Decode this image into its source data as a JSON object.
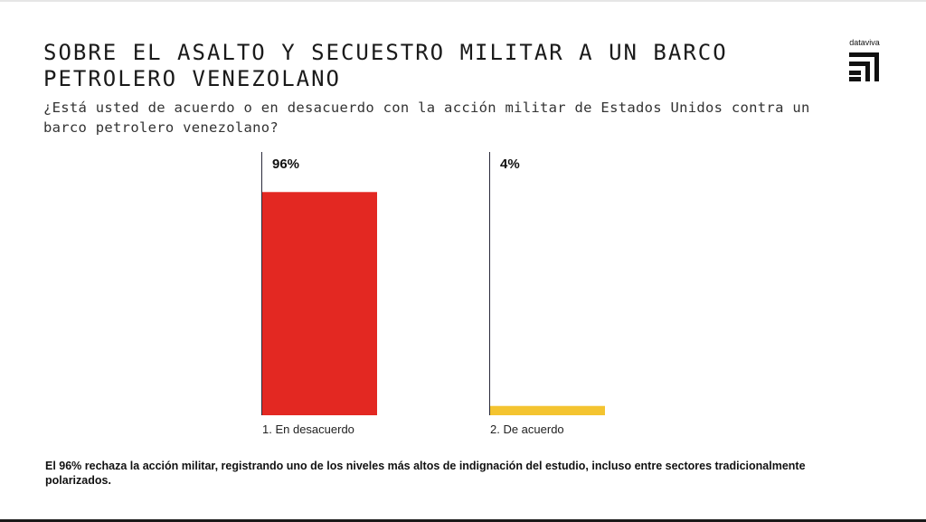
{
  "header": {
    "title": "SOBRE EL ASALTO Y SECUESTRO MILITAR A UN BARCO PETROLERO VENEZOLANO",
    "subtitle": "¿Está usted de acuerdo o en desacuerdo con la acción militar de Estados Unidos contra un barco petrolero venezolano?",
    "brand": "dataviva"
  },
  "footer": {
    "note": "El 96% rechaza la acción militar, registrando uno de los niveles más altos de indignación del estudio, incluso entre sectores tradicionalmente polarizados."
  },
  "chart_data": {
    "type": "bar",
    "title": "SOBRE EL ASALTO Y SECUESTRO MILITAR A UN BARCO PETROLERO VENEZOLANO",
    "categories": [
      "1. En desacuerdo",
      "2. De acuerdo"
    ],
    "values": [
      96,
      4
    ],
    "value_labels": [
      "96%",
      "4%"
    ],
    "colors": [
      "#e32822",
      "#f4c430"
    ],
    "xlabel": "",
    "ylabel": "",
    "ylim": [
      0,
      100
    ],
    "grid": false
  }
}
